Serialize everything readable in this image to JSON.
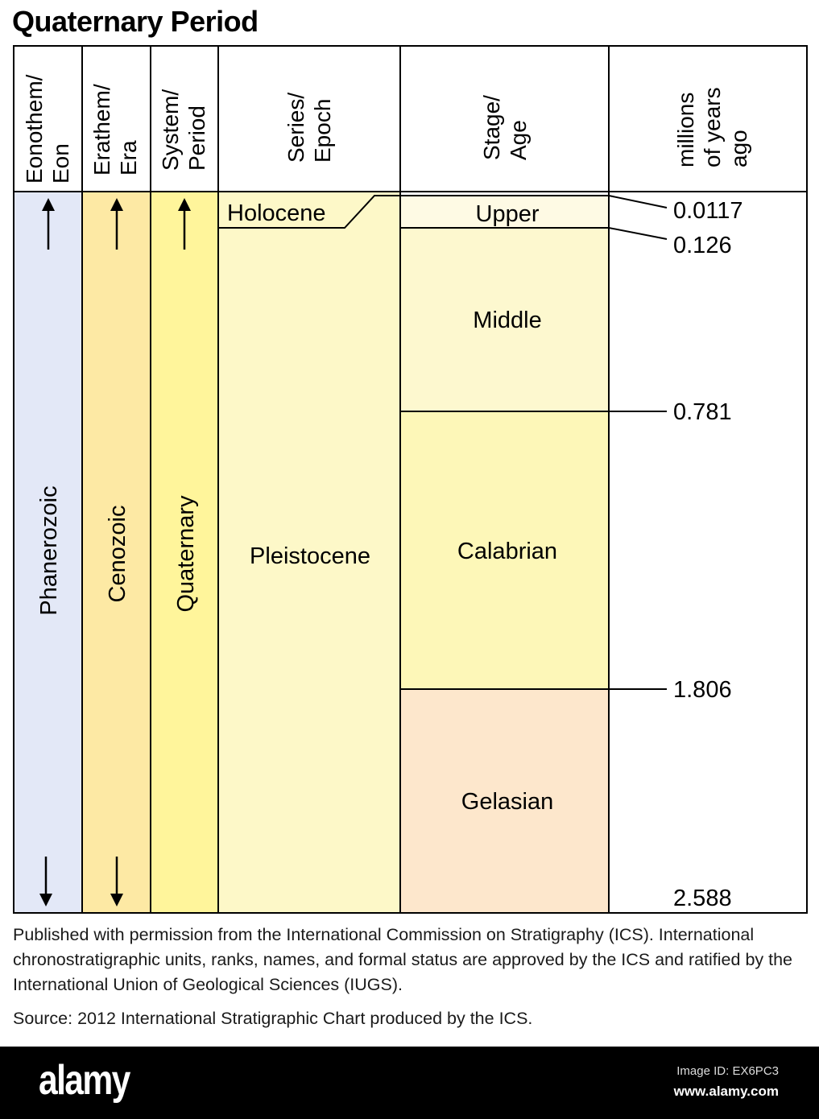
{
  "title": "Quaternary Period",
  "headers": {
    "eon": [
      "Eonothem/",
      "Eon"
    ],
    "era": [
      "Erathem/",
      "Era"
    ],
    "period": [
      "System/",
      "Period"
    ],
    "epoch": [
      "Series/",
      "Epoch"
    ],
    "age": [
      "Stage/",
      "Age"
    ],
    "mya": [
      "millions",
      "of years",
      "ago"
    ]
  },
  "units": {
    "eon": "Phanerozoic",
    "era": "Cenozoic",
    "period": "Quaternary",
    "epochs": [
      "Holocene",
      "Pleistocene"
    ],
    "stages": [
      "Upper",
      "Middle",
      "Calabrian",
      "Gelasian"
    ]
  },
  "boundaries_mya": [
    "0.0117",
    "0.126",
    "0.781",
    "1.806",
    "2.588"
  ],
  "colors": {
    "eon": "#e3e8f7",
    "era": "#fde9a4",
    "period": "#fff59b",
    "epoch": "#fdf8c8",
    "stage_upper": "#fefae4",
    "stage_middle": "#fdf8cf",
    "stage_calabrian": "#fdf7b8",
    "stage_gelasian": "#fde7cc"
  },
  "caption": {
    "permission": "Published with permission from the International Commission on Stratigraphy (ICS). International chronostratigraphic units, ranks, names, and formal status are approved by the ICS and ratified by the International Union of Geological Sciences (IUGS).",
    "source": "Source: 2012 International Stratigraphic Chart produced by the ICS."
  },
  "footer": {
    "brand": "alamy",
    "image_id": "Image ID: EX6PC3",
    "site": "www.alamy.com"
  }
}
